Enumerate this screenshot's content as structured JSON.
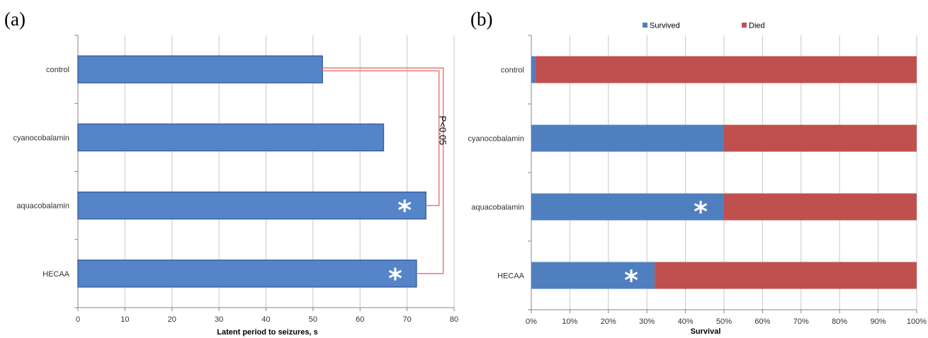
{
  "panels": {
    "a_label": "(a)",
    "b_label": "(b)"
  },
  "colors": {
    "blue_bar": "#5585c8",
    "blue_stroke": "#3a62a0",
    "survived": "#4f7fbf",
    "died": "#c0504d",
    "grid": "#c8c8c8",
    "bracket": "#e87878"
  },
  "chart_data": [
    {
      "type": "bar",
      "orientation": "horizontal",
      "categories": [
        "control",
        "cyanocobalamin",
        "aquacobalamin",
        "HECAA"
      ],
      "values": [
        52,
        65,
        74,
        72
      ],
      "xlabel": "Latent period to seizures, s",
      "ylabel": "",
      "xlim": [
        0,
        80
      ],
      "xticks": [
        "0",
        "10",
        "20",
        "30",
        "40",
        "50",
        "60",
        "70",
        "80"
      ],
      "grid": true,
      "markers": [
        {
          "category": "aquacobalamin",
          "symbol": "*"
        },
        {
          "category": "HECAA",
          "symbol": "*"
        }
      ],
      "annotation": {
        "text": "P<0.05",
        "from": "control",
        "to": [
          "aquacobalamin",
          "HECAA"
        ]
      }
    },
    {
      "type": "bar",
      "orientation": "horizontal",
      "stacked": true,
      "categories": [
        "control",
        "cyanocobalamin",
        "aquacobalamin",
        "HECAA"
      ],
      "series": [
        {
          "name": "Survived",
          "values": [
            1,
            50,
            50,
            32
          ]
        },
        {
          "name": "Died",
          "values": [
            99,
            50,
            50,
            68
          ]
        }
      ],
      "xlabel": "Survival",
      "xlim": [
        0,
        100
      ],
      "xticks": [
        "0%",
        "10%",
        "20%",
        "30%",
        "40%",
        "50%",
        "60%",
        "70%",
        "80%",
        "90%",
        "100%"
      ],
      "legend_position": "top",
      "grid": true,
      "markers": [
        {
          "category": "aquacobalamin",
          "symbol": "*"
        },
        {
          "category": "HECAA",
          "symbol": "*"
        }
      ]
    }
  ]
}
